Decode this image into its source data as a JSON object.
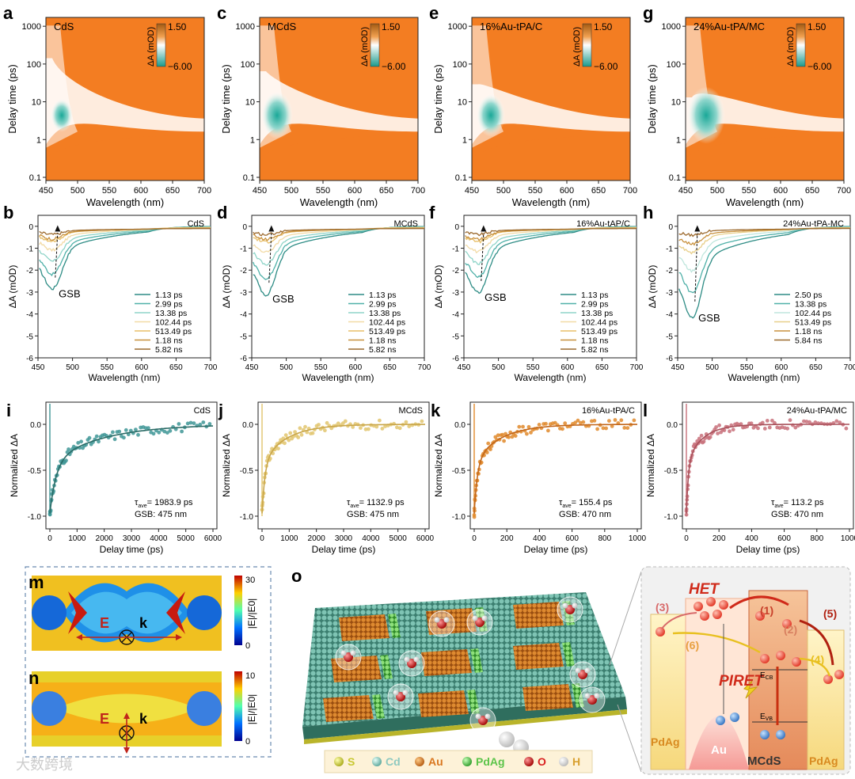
{
  "heatmaps": [
    {
      "letter": "a",
      "sample": "CdS",
      "xlabel": "Wavelength (nm)",
      "ylabel": "Delay time (ps)",
      "xticks": [
        "450",
        "500",
        "550",
        "600",
        "650",
        "700"
      ],
      "yticks": [
        "0.1",
        "1",
        "10",
        "100",
        "1000"
      ],
      "cbar_label": "ΔA (mOD)",
      "cbar_max": "1.50",
      "cbar_min": "−6.00"
    },
    {
      "letter": "c",
      "sample": "MCdS",
      "xlabel": "Wavelength (nm)",
      "ylabel": "Delay time (ps)",
      "xticks": [
        "450",
        "500",
        "550",
        "600",
        "650",
        "700"
      ],
      "yticks": [
        "0.1",
        "1",
        "10",
        "100",
        "1000"
      ],
      "cbar_label": "ΔA (mOD)",
      "cbar_max": "1.50",
      "cbar_min": "−6.00"
    },
    {
      "letter": "e",
      "sample": "16%Au-tPA/C",
      "xlabel": "Wavelength (nm)",
      "ylabel": "Delay time (ps)",
      "xticks": [
        "450",
        "500",
        "550",
        "600",
        "650",
        "700"
      ],
      "yticks": [
        "0.1",
        "1",
        "10",
        "100",
        "1000"
      ],
      "cbar_label": "ΔA (mOD)",
      "cbar_max": "1.50",
      "cbar_min": "−6.00"
    },
    {
      "letter": "g",
      "sample": "24%Au-tPA/MC",
      "xlabel": "Wavelength (nm)",
      "ylabel": "Delay time (ps)",
      "xticks": [
        "450",
        "500",
        "550",
        "600",
        "650",
        "700"
      ],
      "yticks": [
        "0.1",
        "1",
        "10",
        "100",
        "1000"
      ],
      "cbar_label": "ΔA (mOD)",
      "cbar_max": "1.50",
      "cbar_min": "−6.00"
    }
  ],
  "spectra": [
    {
      "letter": "b",
      "sample": "CdS",
      "gsb": "GSB",
      "legend": [
        "1.13 ps",
        "2.99 ps",
        "13.38 ps",
        "102.44 ps",
        "513.49 ps",
        "1.18 ns",
        "5.82 ns"
      ],
      "xlabel": "Wavelength (nm)",
      "ylabel": "ΔA (mOD)"
    },
    {
      "letter": "d",
      "sample": "MCdS",
      "gsb": "GSB",
      "legend": [
        "1.13 ps",
        "2.99 ps",
        "13.38 ps",
        "102.44 ps",
        "513.49 ps",
        "1.18 ns",
        "5.82 ns"
      ],
      "xlabel": "Wavelength (nm)",
      "ylabel": "ΔA (mOD)"
    },
    {
      "letter": "f",
      "sample": "16%Au-tAP/C",
      "gsb": "GSB",
      "legend": [
        "1.13 ps",
        "2.99 ps",
        "13.38 ps",
        "102.44 ps",
        "513.49 ps",
        "1.18 ns",
        "5.82 ns"
      ],
      "xlabel": "Wavelength (nm)",
      "ylabel": "ΔA (mOD)"
    },
    {
      "letter": "h",
      "sample": "24%Au-tPA-MC",
      "gsb": "GSB",
      "legend": [
        "2.50 ps",
        "13.38 ps",
        "102.44 ps",
        "513.49 ps",
        "1.18 ns",
        "5.84 ns"
      ],
      "xlabel": "Wavelength (nm)",
      "ylabel": "ΔA (mOD)"
    }
  ],
  "kinetics": [
    {
      "letter": "i",
      "sample": "CdS",
      "tau": "τ",
      "tau_sub": "ave",
      "tau_text": "= 1983.9 ps",
      "gsb": "GSB: 475 nm",
      "xlabel": "Delay time (ps)",
      "ylabel": "Normalized ΔA",
      "xmax": 6000,
      "decay": 1900,
      "color": "#3f9696"
    },
    {
      "letter": "j",
      "sample": "MCdS",
      "tau": "τ",
      "tau_sub": "ave",
      "tau_text": "= 1132.9 ps",
      "gsb": "GSB: 475 nm",
      "xlabel": "Delay time (ps)",
      "ylabel": "Normalized ΔA",
      "xmax": 6000,
      "decay": 900,
      "color": "#e2c56e"
    },
    {
      "letter": "k",
      "sample": "16%Au-tPA/C",
      "tau": "τ",
      "tau_sub": "ave",
      "tau_text": "= 155.4 ps",
      "gsb": "GSB: 470 nm",
      "xlabel": "Delay time (ps)",
      "ylabel": "Normalized ΔA",
      "xmax": 1000,
      "decay": 160,
      "color": "#e08a2c"
    },
    {
      "letter": "l",
      "sample": "24%Au-tPA/MC",
      "tau": "τ",
      "tau_sub": "ave",
      "tau_text": "= 113.2 ps",
      "gsb": "GSB: 470 nm",
      "xlabel": "Delay time (ps)",
      "ylabel": "Normalized ΔA",
      "xmax": 1000,
      "decay": 100,
      "color": "#c8707a"
    }
  ],
  "kinetics_xticks": {
    "wide": [
      "0",
      "1000",
      "2000",
      "3000",
      "4000",
      "5000",
      "6000"
    ],
    "narrow": [
      "0",
      "200",
      "400",
      "600",
      "800",
      "1000"
    ]
  },
  "kinetics_yticks": [
    "-1.0",
    "-0.5",
    "0.0"
  ],
  "spectra_yticks": [
    "0",
    "-1",
    "-2",
    "-3",
    "-4",
    "-5",
    "-6"
  ],
  "spectra_xticks": [
    "450",
    "500",
    "550",
    "600",
    "650",
    "700"
  ],
  "field_maps": [
    {
      "letter": "m",
      "cbar_max": "30",
      "cbar_min": "0",
      "cbar_label": "|E|/|E0|",
      "e_label": "E",
      "k_label": "k"
    },
    {
      "letter": "n",
      "cbar_max": "10",
      "cbar_min": "0",
      "cbar_label": "|E|/|E0|",
      "e_label": "E",
      "k_label": "k"
    }
  ],
  "panel_o": {
    "letter": "o",
    "legend": [
      {
        "label": "S",
        "color": "#c8c832"
      },
      {
        "label": "Cd",
        "color": "#8ec9c0"
      },
      {
        "label": "Au",
        "color": "#d9771f"
      },
      {
        "label": "PdAg",
        "color": "#5cc44a"
      },
      {
        "label": "O",
        "color": "#d92020"
      },
      {
        "label": "H",
        "color": "#f0f0f0"
      }
    ],
    "diagram": {
      "het": "HET",
      "piret": "PIRET",
      "ecb": "E",
      "ecb_sub": "CB",
      "evb": "E",
      "evb_sub": "VB",
      "au": "Au",
      "mcds": "MCdS",
      "pdag_left": "PdAg",
      "pdag_right": "PdAg",
      "steps": [
        "(1)",
        "(2)",
        "(3)",
        "(4)",
        "(5)",
        "(6)"
      ],
      "electron": "e⁻",
      "hole": "h⁺"
    }
  },
  "watermark": "大数跨境"
}
